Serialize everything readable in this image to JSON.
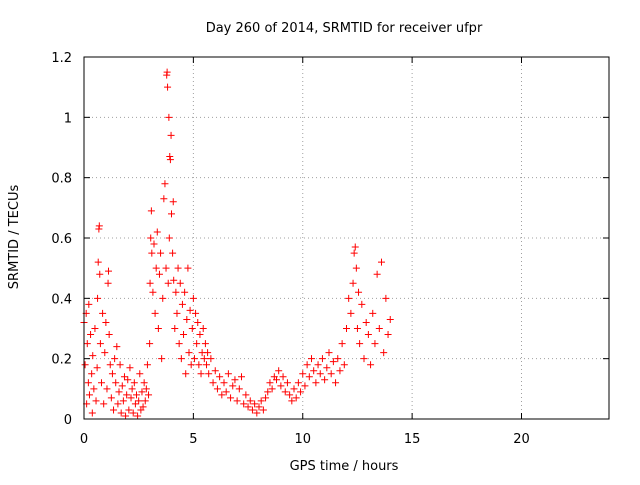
{
  "chart_data": {
    "type": "scatter",
    "title": "Day 260 of 2014, SRMTID for receiver ufpr",
    "xlabel": "GPS time / hours",
    "ylabel": "SRMTID / TECUs",
    "xlim": [
      0,
      24
    ],
    "ylim": [
      0,
      1.2
    ],
    "xticks": [
      0,
      5,
      10,
      15,
      20
    ],
    "xtick_labels": [
      "0",
      "5",
      "10",
      "15",
      "20"
    ],
    "yticks": [
      0,
      0.2,
      0.4,
      0.6,
      0.8,
      1.0,
      1.2
    ],
    "ytick_labels": [
      "0",
      "0.2",
      "0.4",
      "0.6",
      "0.8",
      "1",
      "1.2"
    ],
    "grid": true,
    "marker": "+",
    "series": [
      {
        "name": "SRMTID",
        "color": "#ff0000",
        "points": [
          [
            0.0,
            0.32
          ],
          [
            0.05,
            0.18
          ],
          [
            0.1,
            0.35
          ],
          [
            0.12,
            0.05
          ],
          [
            0.15,
            0.25
          ],
          [
            0.2,
            0.12
          ],
          [
            0.22,
            0.38
          ],
          [
            0.25,
            0.08
          ],
          [
            0.3,
            0.28
          ],
          [
            0.35,
            0.15
          ],
          [
            0.38,
            0.02
          ],
          [
            0.4,
            0.21
          ],
          [
            0.45,
            0.1
          ],
          [
            0.5,
            0.3
          ],
          [
            0.55,
            0.06
          ],
          [
            0.6,
            0.17
          ],
          [
            0.62,
            0.4
          ],
          [
            0.65,
            0.52
          ],
          [
            0.68,
            0.63
          ],
          [
            0.7,
            0.64
          ],
          [
            0.72,
            0.48
          ],
          [
            0.75,
            0.25
          ],
          [
            0.8,
            0.12
          ],
          [
            0.85,
            0.35
          ],
          [
            0.9,
            0.05
          ],
          [
            0.95,
            0.22
          ],
          [
            1.0,
            0.32
          ],
          [
            1.05,
            0.1
          ],
          [
            1.1,
            0.45
          ],
          [
            1.12,
            0.49
          ],
          [
            1.15,
            0.28
          ],
          [
            1.2,
            0.18
          ],
          [
            1.25,
            0.07
          ],
          [
            1.3,
            0.15
          ],
          [
            1.35,
            0.03
          ],
          [
            1.4,
            0.2
          ],
          [
            1.45,
            0.12
          ],
          [
            1.5,
            0.24
          ],
          [
            1.55,
            0.05
          ],
          [
            1.6,
            0.09
          ],
          [
            1.65,
            0.18
          ],
          [
            1.7,
            0.02
          ],
          [
            1.75,
            0.11
          ],
          [
            1.8,
            0.06
          ],
          [
            1.85,
            0.14
          ],
          [
            1.9,
            0.01
          ],
          [
            1.95,
            0.08
          ],
          [
            2.0,
            0.13
          ],
          [
            2.05,
            0.03
          ],
          [
            2.1,
            0.17
          ],
          [
            2.15,
            0.07
          ],
          [
            2.2,
            0.1
          ],
          [
            2.25,
            0.02
          ],
          [
            2.3,
            0.12
          ],
          [
            2.35,
            0.05
          ],
          [
            2.4,
            0.08
          ],
          [
            2.45,
            0.01
          ],
          [
            2.5,
            0.06
          ],
          [
            2.55,
            0.15
          ],
          [
            2.6,
            0.03
          ],
          [
            2.65,
            0.09
          ],
          [
            2.7,
            0.04
          ],
          [
            2.75,
            0.12
          ],
          [
            2.8,
            0.06
          ],
          [
            2.85,
            0.1
          ],
          [
            2.9,
            0.18
          ],
          [
            2.95,
            0.08
          ],
          [
            3.0,
            0.25
          ],
          [
            3.02,
            0.45
          ],
          [
            3.05,
            0.6
          ],
          [
            3.08,
            0.69
          ],
          [
            3.1,
            0.55
          ],
          [
            3.15,
            0.42
          ],
          [
            3.2,
            0.58
          ],
          [
            3.25,
            0.35
          ],
          [
            3.3,
            0.5
          ],
          [
            3.35,
            0.62
          ],
          [
            3.4,
            0.3
          ],
          [
            3.45,
            0.48
          ],
          [
            3.5,
            0.55
          ],
          [
            3.55,
            0.2
          ],
          [
            3.6,
            0.4
          ],
          [
            3.65,
            0.73
          ],
          [
            3.7,
            0.78
          ],
          [
            3.75,
            0.5
          ],
          [
            3.78,
            1.14
          ],
          [
            3.8,
            1.15
          ],
          [
            3.82,
            1.1
          ],
          [
            3.85,
            0.45
          ],
          [
            3.88,
            1.0
          ],
          [
            3.9,
            0.6
          ],
          [
            3.92,
            0.87
          ],
          [
            3.95,
            0.86
          ],
          [
            3.98,
            0.94
          ],
          [
            4.0,
            0.68
          ],
          [
            4.05,
            0.55
          ],
          [
            4.08,
            0.72
          ],
          [
            4.1,
            0.46
          ],
          [
            4.15,
            0.3
          ],
          [
            4.2,
            0.42
          ],
          [
            4.25,
            0.35
          ],
          [
            4.3,
            0.5
          ],
          [
            4.35,
            0.25
          ],
          [
            4.4,
            0.45
          ],
          [
            4.45,
            0.2
          ],
          [
            4.5,
            0.38
          ],
          [
            4.55,
            0.28
          ],
          [
            4.6,
            0.42
          ],
          [
            4.65,
            0.15
          ],
          [
            4.7,
            0.33
          ],
          [
            4.75,
            0.5
          ],
          [
            4.8,
            0.22
          ],
          [
            4.85,
            0.36
          ],
          [
            4.9,
            0.18
          ],
          [
            4.95,
            0.3
          ],
          [
            5.0,
            0.4
          ],
          [
            5.05,
            0.2
          ],
          [
            5.1,
            0.35
          ],
          [
            5.15,
            0.25
          ],
          [
            5.2,
            0.32
          ],
          [
            5.25,
            0.18
          ],
          [
            5.3,
            0.28
          ],
          [
            5.35,
            0.15
          ],
          [
            5.4,
            0.22
          ],
          [
            5.45,
            0.3
          ],
          [
            5.5,
            0.2
          ],
          [
            5.55,
            0.25
          ],
          [
            5.6,
            0.18
          ],
          [
            5.65,
            0.22
          ],
          [
            5.7,
            0.15
          ],
          [
            5.8,
            0.2
          ],
          [
            5.9,
            0.12
          ],
          [
            6.0,
            0.16
          ],
          [
            6.1,
            0.1
          ],
          [
            6.2,
            0.14
          ],
          [
            6.3,
            0.08
          ],
          [
            6.4,
            0.12
          ],
          [
            6.5,
            0.09
          ],
          [
            6.6,
            0.15
          ],
          [
            6.7,
            0.07
          ],
          [
            6.8,
            0.11
          ],
          [
            6.9,
            0.13
          ],
          [
            7.0,
            0.06
          ],
          [
            7.1,
            0.1
          ],
          [
            7.2,
            0.14
          ],
          [
            7.3,
            0.05
          ],
          [
            7.4,
            0.08
          ],
          [
            7.5,
            0.04
          ],
          [
            7.6,
            0.06
          ],
          [
            7.7,
            0.03
          ],
          [
            7.8,
            0.05
          ],
          [
            7.9,
            0.02
          ],
          [
            8.0,
            0.04
          ],
          [
            8.1,
            0.06
          ],
          [
            8.2,
            0.03
          ],
          [
            8.3,
            0.07
          ],
          [
            8.4,
            0.09
          ],
          [
            8.5,
            0.12
          ],
          [
            8.6,
            0.1
          ],
          [
            8.7,
            0.14
          ],
          [
            8.8,
            0.13
          ],
          [
            8.9,
            0.16
          ],
          [
            9.0,
            0.11
          ],
          [
            9.1,
            0.14
          ],
          [
            9.2,
            0.09
          ],
          [
            9.3,
            0.12
          ],
          [
            9.4,
            0.08
          ],
          [
            9.5,
            0.06
          ],
          [
            9.6,
            0.1
          ],
          [
            9.7,
            0.07
          ],
          [
            9.8,
            0.12
          ],
          [
            9.9,
            0.09
          ],
          [
            10.0,
            0.15
          ],
          [
            10.1,
            0.11
          ],
          [
            10.2,
            0.18
          ],
          [
            10.3,
            0.14
          ],
          [
            10.4,
            0.2
          ],
          [
            10.5,
            0.16
          ],
          [
            10.6,
            0.12
          ],
          [
            10.7,
            0.18
          ],
          [
            10.8,
            0.15
          ],
          [
            10.9,
            0.2
          ],
          [
            11.0,
            0.13
          ],
          [
            11.1,
            0.17
          ],
          [
            11.2,
            0.22
          ],
          [
            11.3,
            0.15
          ],
          [
            11.4,
            0.19
          ],
          [
            11.5,
            0.12
          ],
          [
            11.6,
            0.2
          ],
          [
            11.7,
            0.16
          ],
          [
            11.8,
            0.25
          ],
          [
            11.9,
            0.18
          ],
          [
            12.0,
            0.3
          ],
          [
            12.1,
            0.4
          ],
          [
            12.2,
            0.35
          ],
          [
            12.3,
            0.45
          ],
          [
            12.35,
            0.55
          ],
          [
            12.4,
            0.57
          ],
          [
            12.45,
            0.5
          ],
          [
            12.5,
            0.3
          ],
          [
            12.55,
            0.42
          ],
          [
            12.6,
            0.25
          ],
          [
            12.7,
            0.38
          ],
          [
            12.8,
            0.2
          ],
          [
            12.9,
            0.32
          ],
          [
            13.0,
            0.28
          ],
          [
            13.1,
            0.18
          ],
          [
            13.2,
            0.35
          ],
          [
            13.3,
            0.25
          ],
          [
            13.4,
            0.48
          ],
          [
            13.5,
            0.3
          ],
          [
            13.6,
            0.52
          ],
          [
            13.7,
            0.22
          ],
          [
            13.8,
            0.4
          ],
          [
            13.9,
            0.28
          ],
          [
            14.0,
            0.33
          ]
        ]
      }
    ]
  }
}
